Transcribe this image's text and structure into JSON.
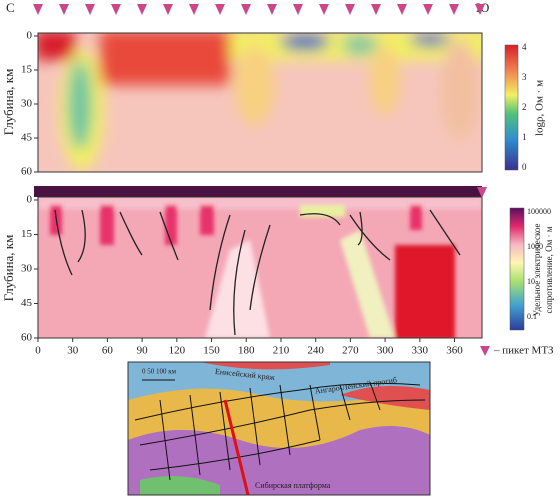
{
  "top_panel": {
    "left_label": "С",
    "right_label": "Ю",
    "ylabel": "Глубина, км",
    "yticks": [
      0,
      15,
      30,
      45,
      60
    ],
    "colorbar": {
      "label": "logρ, Ом · м",
      "ticks": [
        0,
        1,
        2,
        3,
        4
      ]
    }
  },
  "bottom_panel": {
    "ylabel": "Глубина, км",
    "yticks": [
      0,
      15,
      30,
      45,
      60
    ],
    "xticks": [
      0,
      30,
      60,
      90,
      120,
      150,
      180,
      210,
      240,
      270,
      300,
      330,
      360
    ],
    "colorbar": {
      "label_lines": [
        "Удельное электрическое",
        "сопротивление, Ом · м"
      ],
      "ticks": [
        100000,
        1000,
        10,
        0.1
      ]
    }
  },
  "legend": "– пикет МТЗ",
  "map": {
    "scale": "0  50 100 км",
    "labels": [
      "Ангаро-Ленский прогиб",
      "Сибирская платформа",
      "Енисейский кряж"
    ]
  }
}
